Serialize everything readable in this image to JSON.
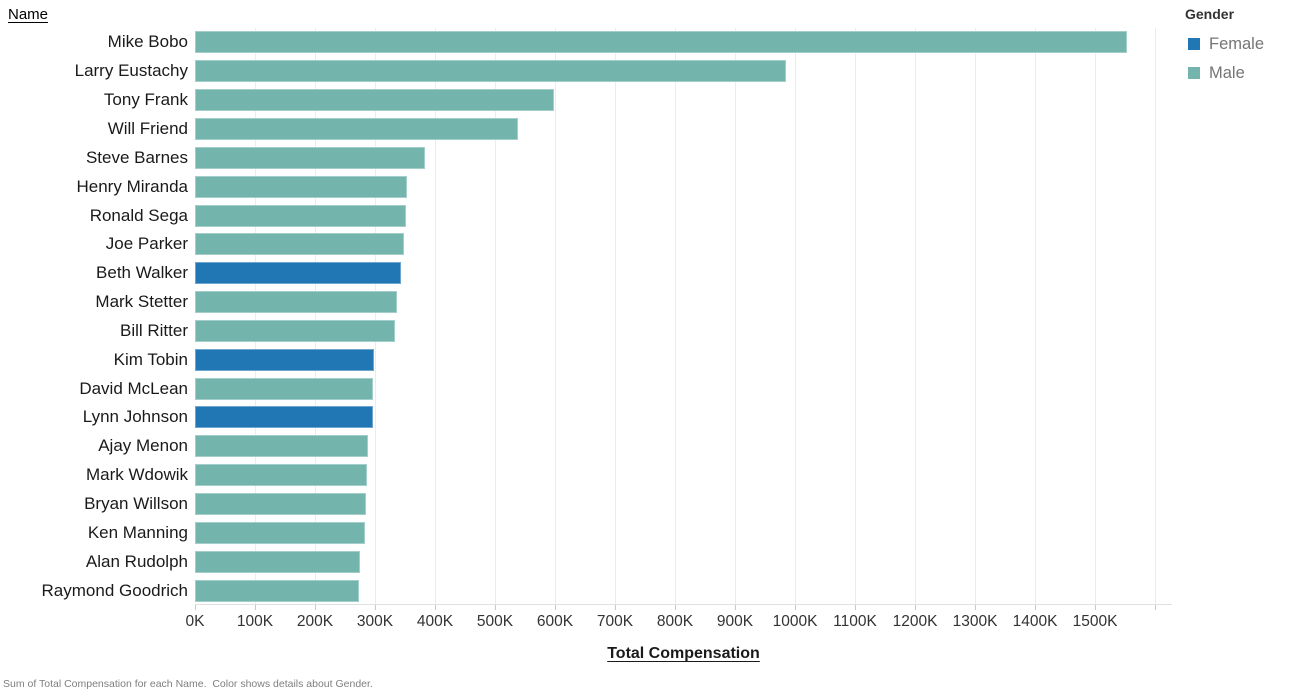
{
  "header": {
    "row_field_label": "Name"
  },
  "legend": {
    "title": "Gender",
    "items": [
      {
        "label": "Female",
        "color": "#2176b4"
      },
      {
        "label": "Male",
        "color": "#73b4ac"
      }
    ]
  },
  "axis": {
    "title": "Total Compensation",
    "tick_labels": [
      "0K",
      "100K",
      "200K",
      "300K",
      "400K",
      "500K",
      "600K",
      "700K",
      "800K",
      "900K",
      "1000K",
      "1100K",
      "1200K",
      "1300K",
      "1400K",
      "1500K"
    ],
    "tick_values_k": [
      0,
      100,
      200,
      300,
      400,
      500,
      600,
      700,
      800,
      900,
      1000,
      1100,
      1200,
      1300,
      1400,
      1500
    ],
    "gridline_values_k": [
      100,
      200,
      300,
      400,
      500,
      600,
      700,
      800,
      900,
      1000,
      1100,
      1200,
      1300,
      1400,
      1500,
      1600
    ]
  },
  "caption": "Sum of Total Compensation for each Name.  Color shows details about Gender.",
  "chart_data": {
    "type": "bar",
    "orientation": "horizontal",
    "title": "Sum of Total Compensation for each Name, colored by Gender",
    "xlabel": "Total Compensation",
    "ylabel": "Name",
    "color_field": "Gender",
    "legend_position": "top-right",
    "grid": "vertical",
    "xlim_k": [
      0,
      1628
    ],
    "colors": {
      "Female": "#2176b4",
      "Male": "#73b4ac"
    },
    "bars": [
      {
        "name": "Mike Bobo",
        "value_k": 1553,
        "gender": "Male"
      },
      {
        "name": "Larry Eustachy",
        "value_k": 985,
        "gender": "Male"
      },
      {
        "name": "Tony Frank",
        "value_k": 599,
        "gender": "Male"
      },
      {
        "name": "Will Friend",
        "value_k": 539,
        "gender": "Male"
      },
      {
        "name": "Steve Barnes",
        "value_k": 383,
        "gender": "Male"
      },
      {
        "name": "Henry Miranda",
        "value_k": 353,
        "gender": "Male"
      },
      {
        "name": "Ronald Sega",
        "value_k": 351,
        "gender": "Male"
      },
      {
        "name": "Joe Parker",
        "value_k": 348,
        "gender": "Male"
      },
      {
        "name": "Beth Walker",
        "value_k": 343,
        "gender": "Female"
      },
      {
        "name": "Mark Stetter",
        "value_k": 336,
        "gender": "Male"
      },
      {
        "name": "Bill Ritter",
        "value_k": 334,
        "gender": "Male"
      },
      {
        "name": "Kim Tobin",
        "value_k": 298,
        "gender": "Female"
      },
      {
        "name": "David McLean",
        "value_k": 297,
        "gender": "Male"
      },
      {
        "name": "Lynn Johnson",
        "value_k": 297,
        "gender": "Female"
      },
      {
        "name": "Ajay Menon",
        "value_k": 289,
        "gender": "Male"
      },
      {
        "name": "Mark Wdowik",
        "value_k": 286,
        "gender": "Male"
      },
      {
        "name": "Bryan Willson",
        "value_k": 285,
        "gender": "Male"
      },
      {
        "name": "Ken Manning",
        "value_k": 283,
        "gender": "Male"
      },
      {
        "name": "Alan Rudolph",
        "value_k": 275,
        "gender": "Male"
      },
      {
        "name": "Raymond Goodrich",
        "value_k": 274,
        "gender": "Male"
      }
    ]
  }
}
